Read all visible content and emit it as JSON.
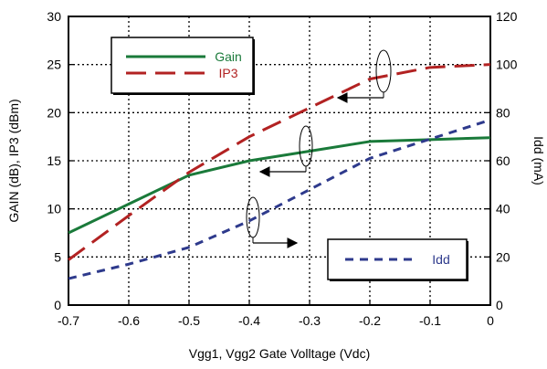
{
  "chart_data": {
    "type": "line",
    "x": [
      -0.7,
      -0.6,
      -0.5,
      -0.4,
      -0.3,
      -0.2,
      -0.1,
      0
    ],
    "xlabel": "Vgg1, Vgg2  Gate Volltage (Vdc)",
    "ylabel_left": "GAIN (dB), IP3 (dBm)",
    "ylabel_right": "Idd (mA)",
    "xlim": [
      -0.7,
      0
    ],
    "ylim_left": [
      0,
      30
    ],
    "ylim_right": [
      0,
      120
    ],
    "x_ticks": [
      "-0.7",
      "-0.6",
      "-0.5",
      "-0.4",
      "-0.3",
      "-0.2",
      "-0.1",
      "0"
    ],
    "y_left_ticks": [
      "0",
      "5",
      "10",
      "15",
      "20",
      "25",
      "30"
    ],
    "y_right_ticks": [
      "0",
      "20",
      "40",
      "60",
      "80",
      "100",
      "120"
    ],
    "grid": true,
    "legend": [
      {
        "name": "Gain",
        "color": "#1a7a3a",
        "style": "solid",
        "position": "top-left"
      },
      {
        "name": "IP3",
        "color": "#b22222",
        "style": "dashed",
        "position": "top-left"
      },
      {
        "name": "Idd",
        "color": "#2e3a8c",
        "style": "dashed",
        "position": "bottom-right"
      }
    ],
    "series": [
      {
        "name": "Gain",
        "axis": "left",
        "color": "#1a7a3a",
        "style": "solid",
        "values": [
          7.5,
          10.5,
          13.5,
          15.0,
          16.0,
          17.0,
          17.2,
          17.4
        ]
      },
      {
        "name": "IP3",
        "axis": "left",
        "color": "#b22222",
        "style": "dashed",
        "values": [
          4.7,
          9.3,
          13.8,
          17.5,
          20.5,
          23.5,
          24.7,
          25.0
        ]
      },
      {
        "name": "Idd",
        "axis": "right",
        "color": "#2e3a8c",
        "style": "dashed",
        "values": [
          11,
          17,
          24,
          35,
          48,
          61,
          69,
          77
        ]
      }
    ]
  }
}
